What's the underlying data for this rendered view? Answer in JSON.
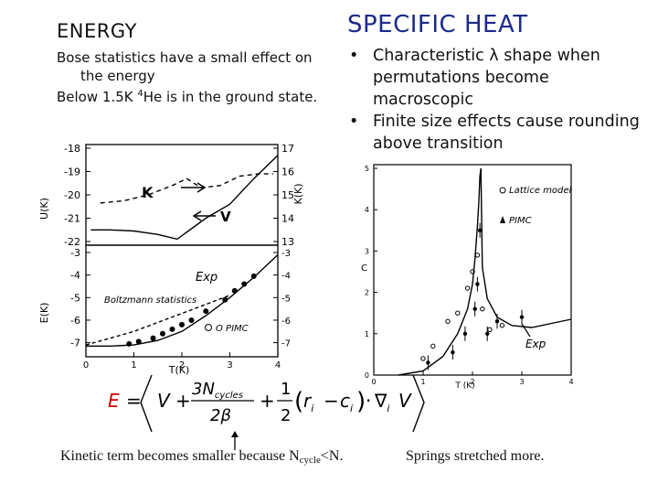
{
  "left": {
    "title": "ENERGY",
    "line1": "Bose statistics have a small effect  on the energy",
    "line2_prefix": "Below 1.5K  ",
    "line2_sup": "4",
    "line2_suffix": "He is in the ground state."
  },
  "right": {
    "title": "SPECIFIC HEAT",
    "bullets": [
      "Characteristic λ  shape when permutations become macroscopic",
      "Finite size effects cause rounding above transition"
    ]
  },
  "chart_data": [
    {
      "type": "line",
      "panel": "top",
      "ylabel": "U(K)",
      "ylabel_right": "K(K)",
      "yticks_left": [
        "-18",
        "-19",
        "-20",
        "-21",
        "-22"
      ],
      "yticks_right": [
        "17",
        "16",
        "15",
        "14",
        "13"
      ],
      "annotations": [
        "K",
        "V"
      ],
      "series": [
        {
          "x": [
            0.1,
            0.5,
            1.0,
            1.5,
            1.9,
            2.2,
            2.5,
            3.0,
            3.5,
            4.0
          ],
          "y": [
            -21.5,
            -21.5,
            -21.55,
            -21.7,
            -21.9,
            -21.45,
            -21.0,
            -20.4,
            -19.3,
            -18.3
          ]
        },
        {
          "x": [
            0.3,
            0.8,
            1.3,
            1.8,
            2.1,
            2.4,
            2.8,
            3.2,
            3.6,
            3.9
          ],
          "y": [
            -20.35,
            -20.25,
            -20.0,
            -19.6,
            -19.3,
            -19.7,
            -19.6,
            -19.2,
            -19.1,
            -19.1
          ]
        }
      ]
    },
    {
      "type": "line",
      "panel": "bottom",
      "ylabel": "E(K)",
      "xlabel": "T(K)",
      "xlim": [
        0,
        4
      ],
      "xticks": [
        "0",
        "1",
        "2",
        "3",
        "4"
      ],
      "yticks_left": [
        "-3",
        "-4",
        "-5",
        "-6",
        "-7"
      ],
      "yticks_right": [
        "-3",
        "-4",
        "-5",
        "-6",
        "-7"
      ],
      "annotations": [
        "Exp",
        "Boltzmann statistics",
        "O PIMC"
      ],
      "series": [
        {
          "x": [
            0.0,
            0.5,
            1.0,
            1.5,
            2.0,
            2.5,
            3.0,
            3.5,
            4.0
          ],
          "y": [
            -7.15,
            -7.15,
            -7.1,
            -6.9,
            -6.5,
            -5.8,
            -5.0,
            -4.1,
            -3.1
          ]
        },
        {
          "x": [
            0.0,
            0.5,
            1.0,
            1.5,
            2.0,
            2.5,
            3.0
          ],
          "y": [
            -7.1,
            -6.8,
            -6.5,
            -6.1,
            -5.7,
            -5.3,
            -4.9
          ]
        },
        {
          "x": [
            0.9,
            1.1,
            1.4,
            1.6,
            1.8,
            2.0,
            2.2,
            2.5,
            2.9,
            3.1,
            3.3,
            3.5
          ],
          "y": [
            -7.05,
            -6.95,
            -6.8,
            -6.6,
            -6.4,
            -6.2,
            -6.0,
            -5.6,
            -5.1,
            -4.7,
            -4.4,
            -4.05
          ]
        }
      ]
    },
    {
      "type": "scatter",
      "panel": "specific-heat",
      "ylabel": "C",
      "xlabel": "T (K)",
      "xlim": [
        0,
        4
      ],
      "ylim": [
        0,
        5
      ],
      "xticks": [
        "0",
        "1",
        "2",
        "3",
        "4"
      ],
      "yticks": [
        "0",
        "1",
        "2",
        "3",
        "4",
        "5"
      ],
      "legend": [
        "Lattice model",
        "PIMC"
      ],
      "annotations": [
        "Exp"
      ],
      "series": [
        {
          "x": [
            0.5,
            1.0,
            1.4,
            1.7,
            1.9,
            2.0,
            2.05,
            2.1,
            2.13,
            2.15,
            2.17,
            2.2,
            2.3,
            2.5,
            2.8,
            3.2,
            3.6,
            4.0
          ],
          "y": [
            0.0,
            0.1,
            0.45,
            1.0,
            1.6,
            2.2,
            2.8,
            3.6,
            4.2,
            4.8,
            5.0,
            2.6,
            1.85,
            1.4,
            1.2,
            1.15,
            1.25,
            1.35
          ]
        },
        {
          "x": [
            1.0,
            1.2,
            1.5,
            1.7,
            1.9,
            2.0,
            2.1,
            2.2,
            2.35,
            2.6
          ],
          "y": [
            0.4,
            0.7,
            1.3,
            1.5,
            2.1,
            2.5,
            2.9,
            1.6,
            1.1,
            1.2
          ]
        },
        {
          "x": [
            1.1,
            1.6,
            1.85,
            2.05,
            2.1,
            2.15,
            2.3,
            2.5,
            3.0
          ],
          "y": [
            0.3,
            0.55,
            1.0,
            1.6,
            2.2,
            3.5,
            1.0,
            1.3,
            1.4
          ]
        }
      ]
    }
  ],
  "formula": {
    "E": "E",
    "eq": "=",
    "V": "V",
    "plus1": "+",
    "num": "3N",
    "num_sub": "cycles",
    "den": "2β",
    "plus2": "+",
    "half_num": "1",
    "half_den": "2",
    "r": "r",
    "r_sub": "i",
    "minus": "−",
    "c": "c",
    "c_sub": "i",
    "dot": "·",
    "nabla": "∇",
    "nabla_sub": "i",
    "V2": "V"
  },
  "bottom": {
    "left_prefix": "Kinetic term becomes smaller because  N",
    "left_sub": "cycle",
    "left_suffix": "<N.",
    "right": "Springs stretched more."
  },
  "colors": {
    "accent_title": "#1c2a8c",
    "formula_E": "#cc0000"
  }
}
